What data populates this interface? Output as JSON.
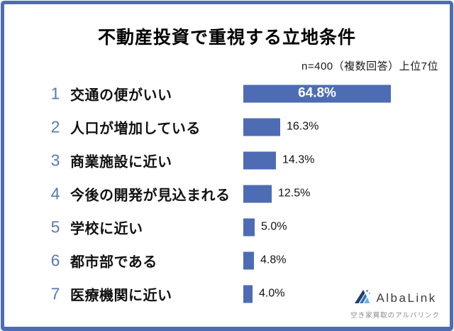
{
  "frame": {
    "border_color": "#4D6CB4",
    "background": "#FFFFFF"
  },
  "header": {
    "title": "不動産投資で重視する立地条件",
    "subtitle": "n=400（複数回答）上位7位"
  },
  "chart_data": {
    "type": "bar",
    "orientation": "horizontal",
    "title": "不動産投資で重視する立地条件",
    "note": "n=400（複数回答）上位7位",
    "ranks": [
      "1",
      "2",
      "3",
      "4",
      "5",
      "6",
      "7"
    ],
    "categories": [
      "交通の便がいい",
      "人口が増加している",
      "商業施設に近い",
      "今後の開発が見込まれる",
      "学校に近い",
      "都市部である",
      "医療機関に近い"
    ],
    "values": [
      64.8,
      16.3,
      14.3,
      12.5,
      5.0,
      4.8,
      4.0
    ],
    "value_labels": [
      "64.8%",
      "16.3%",
      "14.3%",
      "12.5%",
      "5.0%",
      "4.8%",
      "4.0%"
    ],
    "value_label_position": [
      "inside",
      "outside",
      "outside",
      "outside",
      "outside",
      "outside",
      "outside"
    ],
    "xlim": [
      0,
      70
    ],
    "bar_color": "#4D6CB4",
    "rank_color": "#5B79B0",
    "grid": false,
    "legend": "none"
  },
  "footer": {
    "brand": "AlbaLink",
    "tagline": "空き家買取のアルバリンク",
    "logo_icon": "albalink-triangle-logo-icon",
    "icon_colors": [
      "#1C3F6E",
      "#2E75B6",
      "#6DB3DC"
    ]
  }
}
